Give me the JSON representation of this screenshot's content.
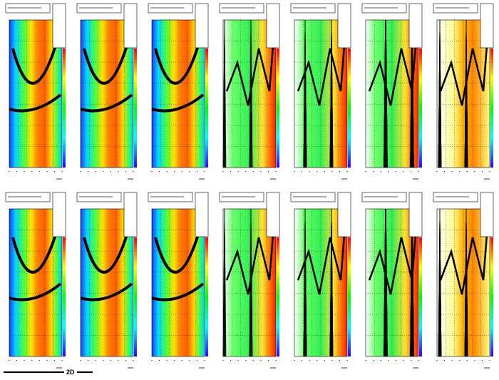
{
  "footer": "2D"
}
